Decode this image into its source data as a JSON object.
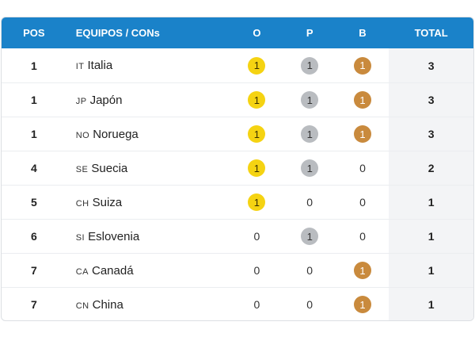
{
  "header": {
    "pos": "POS",
    "team": "EQUIPOS / CONs",
    "gold": "O",
    "silver": "P",
    "bronze": "B",
    "total": "TOTAL"
  },
  "colors": {
    "header_bg": "#1a82c9",
    "gold": "#f5d312",
    "silver": "#b9bcc0",
    "bronze": "#c98a3d"
  },
  "rows": [
    {
      "pos": "1",
      "code": "IT",
      "name": "Italia",
      "gold": "1",
      "silver": "1",
      "bronze": "1",
      "total": "3"
    },
    {
      "pos": "1",
      "code": "JP",
      "name": "Japón",
      "gold": "1",
      "silver": "1",
      "bronze": "1",
      "total": "3"
    },
    {
      "pos": "1",
      "code": "NO",
      "name": "Noruega",
      "gold": "1",
      "silver": "1",
      "bronze": "1",
      "total": "3"
    },
    {
      "pos": "4",
      "code": "SE",
      "name": "Suecia",
      "gold": "1",
      "silver": "1",
      "bronze": "0",
      "total": "2"
    },
    {
      "pos": "5",
      "code": "CH",
      "name": "Suiza",
      "gold": "1",
      "silver": "0",
      "bronze": "0",
      "total": "1"
    },
    {
      "pos": "6",
      "code": "SI",
      "name": "Eslovenia",
      "gold": "0",
      "silver": "1",
      "bronze": "0",
      "total": "1"
    },
    {
      "pos": "7",
      "code": "CA",
      "name": "Canadá",
      "gold": "0",
      "silver": "0",
      "bronze": "1",
      "total": "1"
    },
    {
      "pos": "7",
      "code": "CN",
      "name": "China",
      "gold": "0",
      "silver": "0",
      "bronze": "1",
      "total": "1"
    }
  ]
}
